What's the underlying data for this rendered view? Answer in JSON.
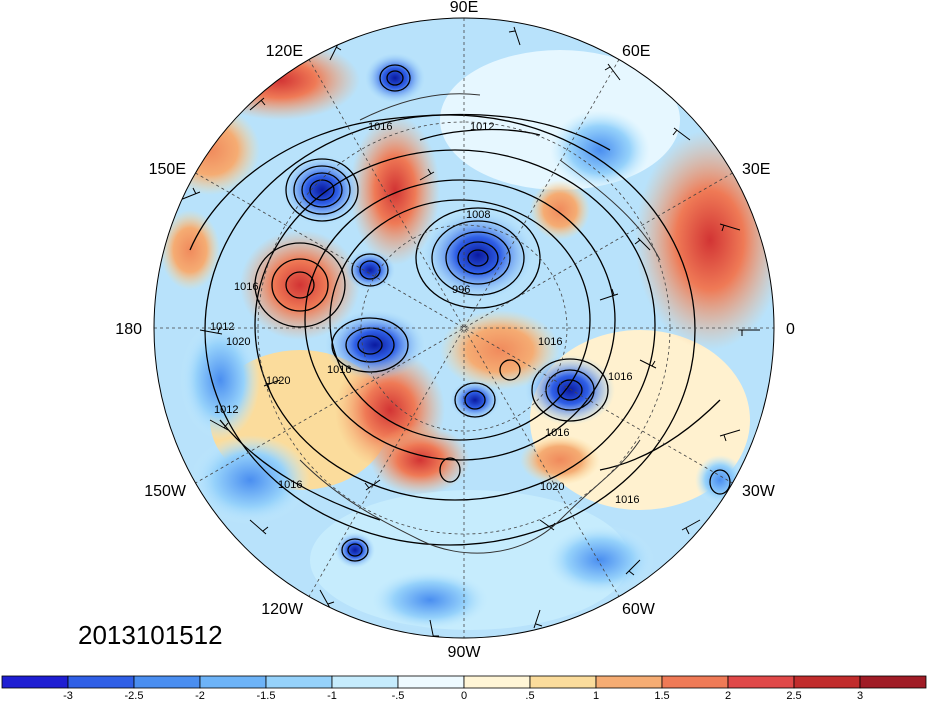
{
  "map": {
    "timestamp": "2013101512",
    "longitude_labels": [
      "90E",
      "60E",
      "30E",
      "0",
      "30W",
      "60W",
      "90W",
      "120W",
      "150W",
      "180",
      "150E",
      "120E"
    ],
    "contour_labels": [
      "1016",
      "1012",
      "1008",
      "996",
      "1016",
      "1012",
      "1020",
      "1016",
      "1020",
      "1016",
      "1020",
      "1016",
      "1016",
      "1016",
      "1012",
      "1016"
    ],
    "colorbar": {
      "tick_labels": [
        "-3",
        "-2.5",
        "-2",
        "-1.5",
        "-1",
        "-.5",
        "0",
        ".5",
        "1",
        "1.5",
        "2",
        "2.5",
        "3"
      ],
      "colors": [
        "#1e1ed2",
        "#2f5fe6",
        "#4a8ef0",
        "#6db3f7",
        "#96d2fb",
        "#c6ecfd",
        "#eefaff",
        "#fff5d6",
        "#fbdc9c",
        "#f5ac73",
        "#ef7a56",
        "#e04848",
        "#c12c2c",
        "#a01c26"
      ]
    }
  }
}
